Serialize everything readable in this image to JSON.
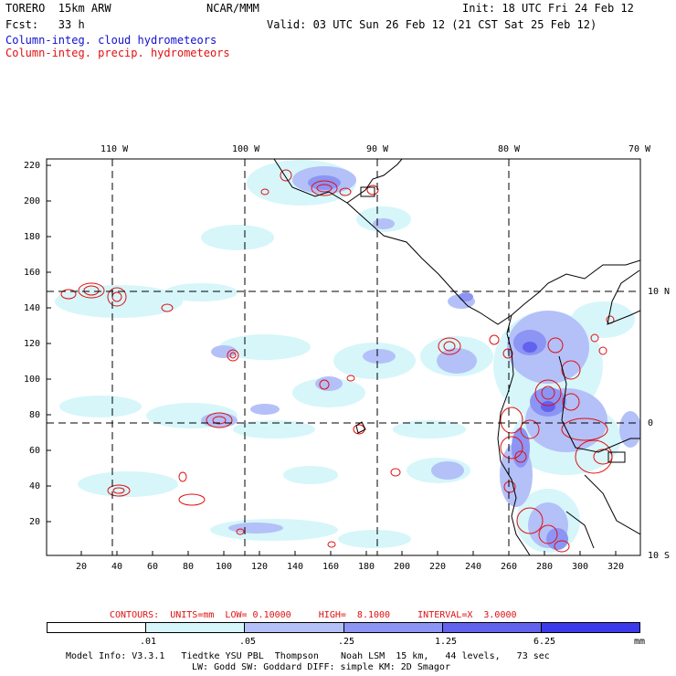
{
  "header": {
    "model": "TORERO  15km ARW",
    "center": "NCAR/MMM",
    "init": "Init: 18 UTC Fri 24 Feb 12",
    "fcst": "Fcst:   33 h",
    "valid": "Valid: 03 UTC Sun 26 Feb 12 (21 CST Sat 25 Feb 12)",
    "field_cloud": "Column-integ. cloud hydrometeors",
    "field_precip": "Column-integ. precip. hydrometeors"
  },
  "axes": {
    "lon_labels": [
      "110 W",
      "100 W",
      "90 W",
      "80 W",
      "70 W"
    ],
    "lat_labels": [
      "10 N",
      "0",
      "10 S"
    ],
    "y_ticks": [
      "220",
      "200",
      "180",
      "160",
      "140",
      "120",
      "100",
      "80",
      "60",
      "40",
      "20"
    ],
    "x_ticks": [
      "20",
      "40",
      "60",
      "80",
      "100",
      "120",
      "140",
      "160",
      "180",
      "200",
      "220",
      "240",
      "260",
      "280",
      "300",
      "320"
    ]
  },
  "contour_info": {
    "text": "CONTOURS:  UNITS=mm  LOW= 0.10000     HIGH=  8.1000     INTERVAL=X  3.0000"
  },
  "colorbar": {
    "unit": "mm",
    "labels": [
      ".01",
      ".05",
      ".25",
      "1.25",
      "6.25"
    ],
    "colors": [
      "#ffffff",
      "#d6f6fa",
      "#b4c0f8",
      "#8c94f4",
      "#6262ee",
      "#3a3aea",
      "#1515e4"
    ]
  },
  "footer": {
    "line1": "Model Info: V3.3.1   Tiedtke YSU PBL  Thompson    Noah LSM  15 km,   44 levels,   73 sec",
    "line2": "LW: Godd SW: Goddard DIFF: simple KM: 2D Smagor"
  }
}
